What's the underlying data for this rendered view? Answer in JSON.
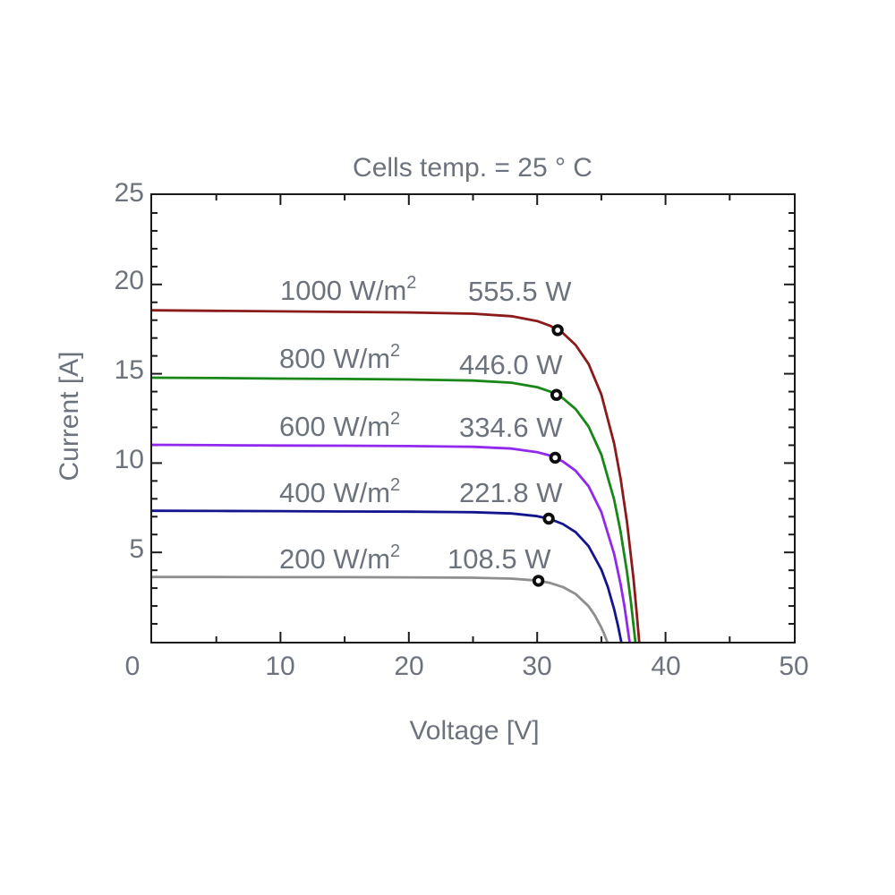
{
  "title": "Cells temp. = 25 ° C",
  "axes": {
    "x_label": "Voltage [V]",
    "y_label": "Current [A]"
  },
  "style": {
    "text_color": "#6d737d",
    "axis_color": "#1a1a1a",
    "background": "#ffffff",
    "mpp_marker": "black-ring-white-center"
  },
  "chart_data": {
    "type": "line",
    "title": "Cells temp. = 25 ° C",
    "xlabel": "Voltage [V]",
    "ylabel": "Current [A]",
    "xlim": [
      0,
      50
    ],
    "ylim": [
      0,
      25
    ],
    "grid": "off",
    "legend": "inline-annotations",
    "x_major_ticks": [
      0,
      10,
      20,
      30,
      40,
      50
    ],
    "y_major_ticks": [
      0,
      5,
      10,
      15,
      20,
      25
    ],
    "x_minor_step": 5,
    "y_minor_step": 1,
    "x_tick_labels": [
      "0",
      "10",
      "20",
      "30",
      "40",
      "50"
    ],
    "y_tick_labels": [
      "5",
      "10",
      "15",
      "20",
      "25"
    ],
    "series": [
      {
        "irradiance_wm2": 1000,
        "irr_text": "1000 W/m",
        "irr_sup": "2",
        "power_w": 555.5,
        "power_label": "555.5 W",
        "color": "#8b1a1a",
        "isc_a": 18.55,
        "voc_v": 37.95,
        "mpp": {
          "v": 31.6,
          "i": 17.44
        },
        "points": [
          [
            0,
            18.55
          ],
          [
            5,
            18.52
          ],
          [
            10,
            18.49
          ],
          [
            15,
            18.46
          ],
          [
            20,
            18.43
          ],
          [
            25,
            18.36
          ],
          [
            28,
            18.22
          ],
          [
            30,
            17.95
          ],
          [
            31,
            17.69
          ],
          [
            32,
            17.28
          ],
          [
            33,
            16.61
          ],
          [
            34,
            15.55
          ],
          [
            35,
            13.84
          ],
          [
            36,
            11.09
          ],
          [
            36.5,
            9.14
          ],
          [
            37,
            6.68
          ],
          [
            37.5,
            3.54
          ],
          [
            37.75,
            1.66
          ],
          [
            37.95,
            0
          ]
        ]
      },
      {
        "irradiance_wm2": 800,
        "irr_text": "800 W/m",
        "irr_sup": "2",
        "power_w": 446.0,
        "power_label": "446.0 W",
        "color": "#188718",
        "isc_a": 14.78,
        "voc_v": 37.65,
        "mpp": {
          "v": 31.5,
          "i": 13.82
        },
        "points": [
          [
            0,
            14.78
          ],
          [
            5,
            14.76
          ],
          [
            10,
            14.73
          ],
          [
            15,
            14.71
          ],
          [
            20,
            14.68
          ],
          [
            25,
            14.62
          ],
          [
            28,
            14.5
          ],
          [
            30,
            14.25
          ],
          [
            31,
            14.01
          ],
          [
            32,
            13.63
          ],
          [
            33,
            13.02
          ],
          [
            34,
            12.05
          ],
          [
            35,
            10.47
          ],
          [
            36,
            7.95
          ],
          [
            36.5,
            6.16
          ],
          [
            37,
            3.89
          ],
          [
            37.3,
            2.24
          ],
          [
            37.65,
            0
          ]
        ]
      },
      {
        "irradiance_wm2": 600,
        "irr_text": "600 W/m",
        "irr_sup": "2",
        "power_w": 334.6,
        "power_label": "334.6 W",
        "color": "#9128ee",
        "isc_a": 11.02,
        "voc_v": 37.2,
        "mpp": {
          "v": 31.4,
          "i": 10.3
        },
        "points": [
          [
            0,
            11.02
          ],
          [
            5,
            11.0
          ],
          [
            10,
            10.98
          ],
          [
            15,
            10.97
          ],
          [
            20,
            10.95
          ],
          [
            25,
            10.91
          ],
          [
            28,
            10.81
          ],
          [
            30,
            10.61
          ],
          [
            31,
            10.42
          ],
          [
            32,
            10.09
          ],
          [
            33,
            9.57
          ],
          [
            34,
            8.7
          ],
          [
            35,
            7.26
          ],
          [
            36,
            4.91
          ],
          [
            36.5,
            3.22
          ],
          [
            36.8,
            1.99
          ],
          [
            37.2,
            0
          ]
        ]
      },
      {
        "irradiance_wm2": 400,
        "irr_text": "400 W/m",
        "irr_sup": "2",
        "power_w": 221.8,
        "power_label": "221.8 W",
        "color": "#14148f",
        "isc_a": 7.33,
        "voc_v": 36.55,
        "mpp": {
          "v": 30.9,
          "i": 6.89
        },
        "points": [
          [
            0,
            7.33
          ],
          [
            5,
            7.32
          ],
          [
            10,
            7.31
          ],
          [
            15,
            7.29
          ],
          [
            20,
            7.28
          ],
          [
            25,
            7.25
          ],
          [
            28,
            7.18
          ],
          [
            30,
            7.03
          ],
          [
            31,
            6.87
          ],
          [
            32,
            6.59
          ],
          [
            33,
            6.13
          ],
          [
            34,
            5.35
          ],
          [
            35,
            4.04
          ],
          [
            35.5,
            3.07
          ],
          [
            36,
            1.82
          ],
          [
            36.3,
            0.89
          ],
          [
            36.55,
            0
          ]
        ]
      },
      {
        "irradiance_wm2": 200,
        "irr_text": "200 W/m",
        "irr_sup": "2",
        "power_w": 108.5,
        "power_label": "108.5 W",
        "color": "#8e8e8e",
        "isc_a": 3.62,
        "voc_v": 35.45,
        "mpp": {
          "v": 30.1,
          "i": 3.41
        },
        "points": [
          [
            0,
            3.62
          ],
          [
            5,
            3.62
          ],
          [
            10,
            3.61
          ],
          [
            15,
            3.61
          ],
          [
            20,
            3.6
          ],
          [
            25,
            3.58
          ],
          [
            28,
            3.53
          ],
          [
            30,
            3.42
          ],
          [
            31,
            3.29
          ],
          [
            32,
            3.06
          ],
          [
            33,
            2.67
          ],
          [
            34,
            1.99
          ],
          [
            34.5,
            1.47
          ],
          [
            35,
            0.79
          ],
          [
            35.2,
            0.47
          ],
          [
            35.45,
            0
          ]
        ]
      }
    ]
  }
}
